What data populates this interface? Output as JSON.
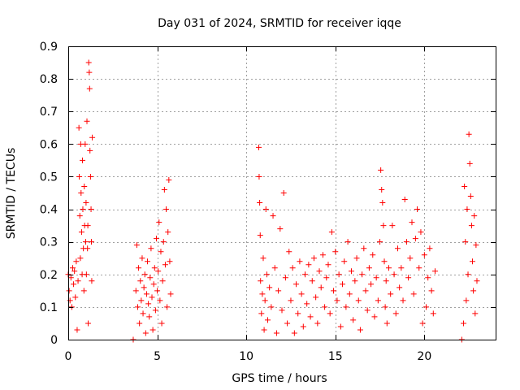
{
  "chart_data": {
    "type": "scatter",
    "title": "Day 031 of 2024, SRMTID for receiver iqqe",
    "xlabel": "GPS time / hours",
    "ylabel": "SRMTID / TECUs",
    "xlim": [
      0,
      24
    ],
    "ylim": [
      0,
      0.9
    ],
    "x_ticks": [
      0,
      5,
      10,
      15,
      20
    ],
    "y_ticks": [
      0,
      0.1,
      0.2,
      0.3,
      0.4,
      0.5,
      0.6,
      0.7,
      0.8,
      0.9
    ],
    "x_tick_labels": [
      "0",
      "5",
      "10",
      "15",
      "20"
    ],
    "y_tick_labels": [
      "0",
      "0.1",
      "0.2",
      "0.3",
      "0.4",
      "0.5",
      "0.6",
      "0.7",
      "0.8",
      "0.9"
    ],
    "grid": true,
    "marker": "plus",
    "color": "#ff0000",
    "series": [
      {
        "name": "SRMTID",
        "points": [
          [
            0.0,
            0.2
          ],
          [
            0.05,
            0.15
          ],
          [
            0.1,
            0.12
          ],
          [
            0.15,
            0.19
          ],
          [
            0.2,
            0.1
          ],
          [
            0.25,
            0.22
          ],
          [
            0.3,
            0.17
          ],
          [
            0.35,
            0.21
          ],
          [
            0.4,
            0.13
          ],
          [
            0.45,
            0.24
          ],
          [
            0.5,
            0.03
          ],
          [
            0.55,
            0.18
          ],
          [
            0.6,
            0.65
          ],
          [
            0.62,
            0.5
          ],
          [
            0.65,
            0.38
          ],
          [
            0.68,
            0.25
          ],
          [
            0.7,
            0.6
          ],
          [
            0.72,
            0.45
          ],
          [
            0.75,
            0.33
          ],
          [
            0.78,
            0.2
          ],
          [
            0.8,
            0.55
          ],
          [
            0.82,
            0.4
          ],
          [
            0.85,
            0.28
          ],
          [
            0.88,
            0.15
          ],
          [
            0.9,
            0.47
          ],
          [
            0.92,
            0.35
          ],
          [
            0.95,
            0.6
          ],
          [
            0.98,
            0.3
          ],
          [
            1.0,
            0.42
          ],
          [
            1.02,
            0.2
          ],
          [
            1.05,
            0.67
          ],
          [
            1.08,
            0.28
          ],
          [
            1.1,
            0.35
          ],
          [
            1.12,
            0.05
          ],
          [
            1.15,
            0.85
          ],
          [
            1.18,
            0.82
          ],
          [
            1.2,
            0.77
          ],
          [
            1.22,
            0.58
          ],
          [
            1.25,
            0.5
          ],
          [
            1.28,
            0.4
          ],
          [
            1.3,
            0.3
          ],
          [
            1.32,
            0.18
          ],
          [
            1.35,
            0.62
          ],
          [
            3.65,
            0.0
          ],
          [
            3.8,
            0.15
          ],
          [
            3.85,
            0.29
          ],
          [
            3.9,
            0.1
          ],
          [
            3.95,
            0.22
          ],
          [
            4.0,
            0.05
          ],
          [
            4.05,
            0.18
          ],
          [
            4.1,
            0.12
          ],
          [
            4.15,
            0.25
          ],
          [
            4.2,
            0.08
          ],
          [
            4.25,
            0.16
          ],
          [
            4.3,
            0.2
          ],
          [
            4.35,
            0.02
          ],
          [
            4.4,
            0.14
          ],
          [
            4.45,
            0.24
          ],
          [
            4.5,
            0.11
          ],
          [
            4.55,
            0.07
          ],
          [
            4.6,
            0.19
          ],
          [
            4.65,
            0.28
          ],
          [
            4.7,
            0.13
          ],
          [
            4.75,
            0.03
          ],
          [
            4.8,
            0.17
          ],
          [
            4.85,
            0.22
          ],
          [
            4.9,
            0.09
          ],
          [
            4.95,
            0.31
          ],
          [
            5.0,
            0.15
          ],
          [
            5.05,
            0.21
          ],
          [
            5.1,
            0.36
          ],
          [
            5.15,
            0.12
          ],
          [
            5.2,
            0.27
          ],
          [
            5.25,
            0.05
          ],
          [
            5.3,
            0.18
          ],
          [
            5.35,
            0.3
          ],
          [
            5.4,
            0.46
          ],
          [
            5.45,
            0.23
          ],
          [
            5.5,
            0.4
          ],
          [
            5.55,
            0.1
          ],
          [
            5.6,
            0.33
          ],
          [
            5.65,
            0.49
          ],
          [
            5.7,
            0.24
          ],
          [
            5.75,
            0.14
          ],
          [
            10.7,
            0.59
          ],
          [
            10.72,
            0.5
          ],
          [
            10.75,
            0.42
          ],
          [
            10.78,
            0.32
          ],
          [
            10.8,
            0.18
          ],
          [
            10.85,
            0.08
          ],
          [
            10.9,
            0.14
          ],
          [
            10.95,
            0.25
          ],
          [
            11.0,
            0.03
          ],
          [
            11.05,
            0.12
          ],
          [
            11.1,
            0.4
          ],
          [
            11.15,
            0.2
          ],
          [
            11.2,
            0.06
          ],
          [
            11.3,
            0.16
          ],
          [
            11.4,
            0.1
          ],
          [
            11.5,
            0.38
          ],
          [
            11.6,
            0.22
          ],
          [
            11.7,
            0.02
          ],
          [
            11.8,
            0.15
          ],
          [
            11.9,
            0.34
          ],
          [
            12.0,
            0.09
          ],
          [
            12.1,
            0.45
          ],
          [
            12.2,
            0.19
          ],
          [
            12.3,
            0.05
          ],
          [
            12.4,
            0.27
          ],
          [
            12.5,
            0.12
          ],
          [
            12.6,
            0.22
          ],
          [
            12.7,
            0.02
          ],
          [
            12.8,
            0.17
          ],
          [
            12.9,
            0.08
          ],
          [
            13.0,
            0.24
          ],
          [
            13.1,
            0.14
          ],
          [
            13.2,
            0.04
          ],
          [
            13.3,
            0.2
          ],
          [
            13.4,
            0.11
          ],
          [
            13.5,
            0.23
          ],
          [
            13.6,
            0.07
          ],
          [
            13.7,
            0.18
          ],
          [
            13.8,
            0.25
          ],
          [
            13.9,
            0.13
          ],
          [
            14.0,
            0.05
          ],
          [
            14.1,
            0.21
          ],
          [
            14.2,
            0.16
          ],
          [
            14.3,
            0.26
          ],
          [
            14.4,
            0.1
          ],
          [
            14.5,
            0.19
          ],
          [
            14.6,
            0.23
          ],
          [
            14.7,
            0.08
          ],
          [
            14.8,
            0.33
          ],
          [
            14.9,
            0.15
          ],
          [
            15.0,
            0.27
          ],
          [
            15.1,
            0.12
          ],
          [
            15.2,
            0.2
          ],
          [
            15.3,
            0.04
          ],
          [
            15.4,
            0.17
          ],
          [
            15.5,
            0.24
          ],
          [
            15.6,
            0.1
          ],
          [
            15.7,
            0.3
          ],
          [
            15.8,
            0.14
          ],
          [
            15.9,
            0.21
          ],
          [
            16.0,
            0.06
          ],
          [
            16.1,
            0.18
          ],
          [
            16.2,
            0.25
          ],
          [
            16.3,
            0.12
          ],
          [
            16.4,
            0.03
          ],
          [
            16.5,
            0.2
          ],
          [
            16.6,
            0.28
          ],
          [
            16.7,
            0.15
          ],
          [
            16.8,
            0.09
          ],
          [
            16.9,
            0.22
          ],
          [
            17.0,
            0.17
          ],
          [
            17.1,
            0.26
          ],
          [
            17.2,
            0.07
          ],
          [
            17.3,
            0.19
          ],
          [
            17.4,
            0.12
          ],
          [
            17.5,
            0.3
          ],
          [
            17.55,
            0.52
          ],
          [
            17.6,
            0.46
          ],
          [
            17.65,
            0.42
          ],
          [
            17.7,
            0.35
          ],
          [
            17.75,
            0.24
          ],
          [
            17.8,
            0.1
          ],
          [
            17.85,
            0.18
          ],
          [
            17.9,
            0.05
          ],
          [
            18.0,
            0.22
          ],
          [
            18.1,
            0.14
          ],
          [
            18.2,
            0.35
          ],
          [
            18.3,
            0.2
          ],
          [
            18.4,
            0.08
          ],
          [
            18.5,
            0.28
          ],
          [
            18.6,
            0.16
          ],
          [
            18.7,
            0.22
          ],
          [
            18.8,
            0.12
          ],
          [
            18.9,
            0.43
          ],
          [
            19.0,
            0.3
          ],
          [
            19.1,
            0.19
          ],
          [
            19.2,
            0.25
          ],
          [
            19.3,
            0.36
          ],
          [
            19.4,
            0.14
          ],
          [
            19.5,
            0.31
          ],
          [
            19.6,
            0.4
          ],
          [
            19.7,
            0.22
          ],
          [
            19.8,
            0.33
          ],
          [
            19.9,
            0.05
          ],
          [
            20.0,
            0.26
          ],
          [
            20.1,
            0.1
          ],
          [
            20.2,
            0.19
          ],
          [
            20.3,
            0.28
          ],
          [
            20.4,
            0.15
          ],
          [
            20.5,
            0.08
          ],
          [
            20.6,
            0.21
          ],
          [
            22.1,
            0.0
          ],
          [
            22.2,
            0.05
          ],
          [
            22.25,
            0.47
          ],
          [
            22.3,
            0.3
          ],
          [
            22.35,
            0.12
          ],
          [
            22.4,
            0.4
          ],
          [
            22.45,
            0.2
          ],
          [
            22.5,
            0.63
          ],
          [
            22.55,
            0.54
          ],
          [
            22.6,
            0.44
          ],
          [
            22.65,
            0.35
          ],
          [
            22.7,
            0.24
          ],
          [
            22.75,
            0.15
          ],
          [
            22.8,
            0.38
          ],
          [
            22.85,
            0.08
          ],
          [
            22.9,
            0.29
          ],
          [
            22.95,
            0.18
          ]
        ]
      }
    ]
  }
}
